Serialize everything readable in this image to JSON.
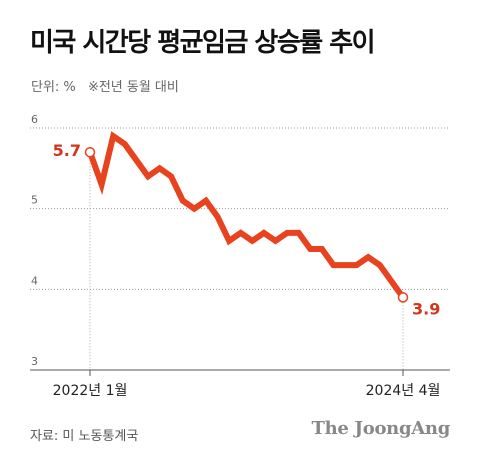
{
  "title": "미국 시간당 평균임금 상승률 추이",
  "unit": {
    "label": "단위: %",
    "note": "※전년 동월 대비"
  },
  "footer": {
    "source": "자료: 미 노동통계국",
    "logo": "The JoongAng"
  },
  "chart_data": {
    "type": "line",
    "ylim": [
      3,
      6
    ],
    "yticks": [
      "3",
      "4",
      "5",
      "6"
    ],
    "grid": true,
    "x_tick_labels": [
      "2022년 1월",
      "2024년 4월"
    ],
    "series": [
      {
        "color": "#e8421e",
        "values": [
          5.7,
          5.3,
          5.9,
          5.8,
          5.6,
          5.4,
          5.5,
          5.4,
          5.1,
          5.0,
          5.1,
          4.9,
          4.6,
          4.7,
          4.6,
          4.7,
          4.6,
          4.7,
          4.7,
          4.5,
          4.5,
          4.3,
          4.3,
          4.3,
          4.4,
          4.3,
          4.1,
          3.9
        ]
      }
    ],
    "annotations": [
      {
        "label": "5.7",
        "color": "#d2351c"
      },
      {
        "label": "3.9",
        "color": "#d2351c"
      }
    ]
  }
}
